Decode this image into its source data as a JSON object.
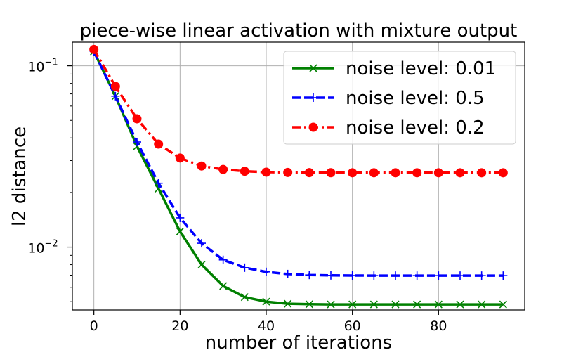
{
  "chart_data": {
    "type": "line",
    "title": "piece-wise linear activation with mixture output",
    "xlabel": "number of iterations",
    "ylabel": "l2 distance",
    "yscale": "log",
    "xlim": [
      -5,
      100
    ],
    "ylim": [
      0.0045,
      0.135
    ],
    "xticks": [
      0,
      20,
      40,
      60,
      80
    ],
    "xtick_labels": [
      "0",
      "20",
      "40",
      "60",
      "80"
    ],
    "yticks": [
      0.1,
      0.01
    ],
    "ytick_labels": [
      {
        "base": "10",
        "exp": "−1"
      },
      {
        "base": "10",
        "exp": "−2"
      }
    ],
    "grid": true,
    "legend_position": "top-right",
    "x": [
      0,
      5,
      10,
      15,
      20,
      25,
      30,
      35,
      40,
      45,
      50,
      55,
      60,
      65,
      70,
      75,
      80,
      85,
      90,
      95
    ],
    "series": [
      {
        "name": "noise level: 0.01",
        "color": "#008000",
        "style": "solid",
        "marker": "x",
        "values": [
          0.12,
          0.068,
          0.036,
          0.021,
          0.0122,
          0.008,
          0.0061,
          0.0053,
          0.005,
          0.00487,
          0.00484,
          0.00483,
          0.00483,
          0.00483,
          0.00483,
          0.00483,
          0.00483,
          0.00483,
          0.00483,
          0.00483
        ]
      },
      {
        "name": "noise level: 0.5",
        "color": "#0000ff",
        "style": "dashed",
        "marker": "plus",
        "values": [
          0.12,
          0.068,
          0.038,
          0.0225,
          0.0145,
          0.0105,
          0.0085,
          0.0077,
          0.0073,
          0.0071,
          0.00702,
          0.00698,
          0.00697,
          0.00696,
          0.00696,
          0.00696,
          0.00696,
          0.00696,
          0.00696,
          0.00696
        ]
      },
      {
        "name": "noise level: 0.2",
        "color": "#ff0000",
        "style": "dashdot",
        "marker": "circle",
        "values": [
          0.123,
          0.077,
          0.051,
          0.037,
          0.031,
          0.028,
          0.0268,
          0.0262,
          0.0259,
          0.0258,
          0.02575,
          0.02572,
          0.0257,
          0.0257,
          0.0257,
          0.0257,
          0.0257,
          0.0257,
          0.0257,
          0.0257
        ]
      }
    ]
  }
}
